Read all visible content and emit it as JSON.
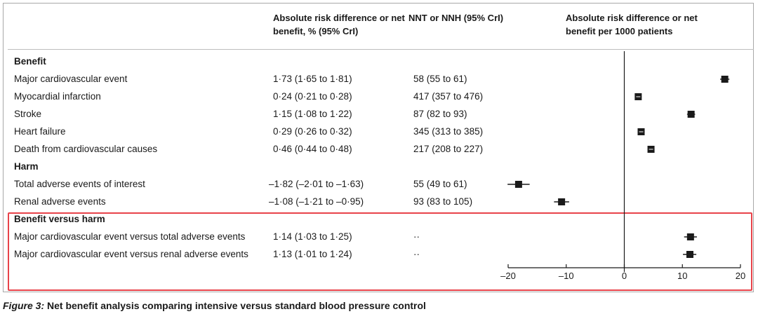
{
  "headers": {
    "ard": "Absolute risk difference or net benefit, % (95% CrI)",
    "nnt": "NNT or NNH (95% CrI)",
    "plot": "Absolute risk difference or net benefit per 1000 patients"
  },
  "sections": [
    {
      "title": "Benefit",
      "rows": [
        {
          "label": "Major cardiovascular event",
          "ard": "1·73 (1·65 to 1·81)",
          "nnt": "58 (55 to 61)"
        },
        {
          "label": "Myocardial infarction",
          "ard": "0·24 (0·21 to 0·28)",
          "nnt": "417 (357 to 476)"
        },
        {
          "label": "Stroke",
          "ard": "1·15 (1·08 to 1·22)",
          "nnt": "87 (82 to 93)"
        },
        {
          "label": "Heart failure",
          "ard": "0·29 (0·26 to 0·32)",
          "nnt": "345 (313 to 385)"
        },
        {
          "label": "Death from cardiovascular causes",
          "ard": "0·46 (0·44 to 0·48)",
          "nnt": "217 (208 to 227)"
        }
      ]
    },
    {
      "title": "Harm",
      "rows": [
        {
          "label": "Total adverse events of interest",
          "ard": "–1·82 (–2·01 to –1·63)",
          "nnt": "55 (49 to 61)"
        },
        {
          "label": "Renal adverse events",
          "ard": "–1·08 (–1·21 to –0·95)",
          "nnt": "93 (83 to 105)"
        }
      ]
    },
    {
      "title": "Benefit versus harm",
      "rows": [
        {
          "label": "Major cardiovascular event versus total adverse events",
          "ard": "1·14 (1·03 to 1·25)",
          "nnt": "··"
        },
        {
          "label": "Major cardiovascular event versus renal adverse events",
          "ard": "1·13 (1·01 to 1·24)",
          "nnt": "··"
        }
      ]
    }
  ],
  "chart_data": {
    "type": "scatter",
    "xlim": [
      -20,
      20
    ],
    "xticks": [
      "–20",
      "–10",
      "0",
      "10",
      "20"
    ],
    "tick_values": [
      -20,
      -10,
      0,
      10,
      20
    ],
    "reference_line": 0,
    "points": [
      {
        "label": "Major cardiovascular event",
        "value": 17.3,
        "low": 16.5,
        "high": 18.1
      },
      {
        "label": "Myocardial infarction",
        "value": 2.4,
        "low": 2.1,
        "high": 2.8
      },
      {
        "label": "Stroke",
        "value": 11.5,
        "low": 10.8,
        "high": 12.2
      },
      {
        "label": "Heart failure",
        "value": 2.9,
        "low": 2.6,
        "high": 3.2
      },
      {
        "label": "Death from cardiovascular causes",
        "value": 4.6,
        "low": 4.4,
        "high": 4.8
      },
      {
        "label": "Total adverse events of interest",
        "value": -18.2,
        "low": -20.1,
        "high": -16.3
      },
      {
        "label": "Renal adverse events",
        "value": -10.8,
        "low": -12.1,
        "high": -9.5
      },
      {
        "label": "Major cardiovascular event versus total adverse events",
        "value": 11.4,
        "low": 10.3,
        "high": 12.5
      },
      {
        "label": "Major cardiovascular event versus renal adverse events",
        "value": 11.3,
        "low": 10.1,
        "high": 12.4
      }
    ]
  },
  "caption": {
    "figure": "Figure 3:",
    "text": " Net benefit analysis comparing intensive versus standard blood pressure control"
  }
}
